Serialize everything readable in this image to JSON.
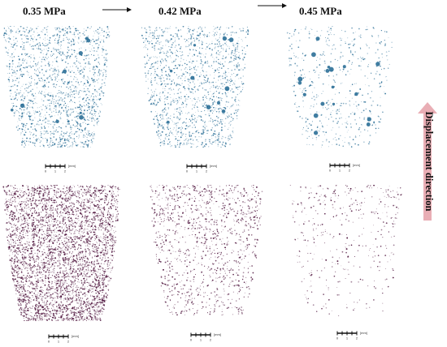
{
  "headers": [
    "0.35 MPa",
    "0.42 MPa",
    "0.45 MPa"
  ],
  "side_label": "Displacement direction",
  "scale_unit": "[mm]",
  "scale_ticks": [
    "0",
    "1",
    "2"
  ],
  "colors": {
    "top_row": "#2b6f97",
    "bottom_row": "#4a0e38",
    "side_arrow": "#e9aeb5"
  },
  "panels": [
    {
      "row": "top",
      "pressure": "0.35 MPa",
      "density": "high"
    },
    {
      "row": "top",
      "pressure": "0.42 MPa",
      "density": "high"
    },
    {
      "row": "top",
      "pressure": "0.45 MPa",
      "density": "low"
    },
    {
      "row": "bottom",
      "pressure": "0.35 MPa",
      "density": "very high"
    },
    {
      "row": "bottom",
      "pressure": "0.42 MPa",
      "density": "medium"
    },
    {
      "row": "bottom",
      "pressure": "0.45 MPa",
      "density": "low"
    }
  ]
}
